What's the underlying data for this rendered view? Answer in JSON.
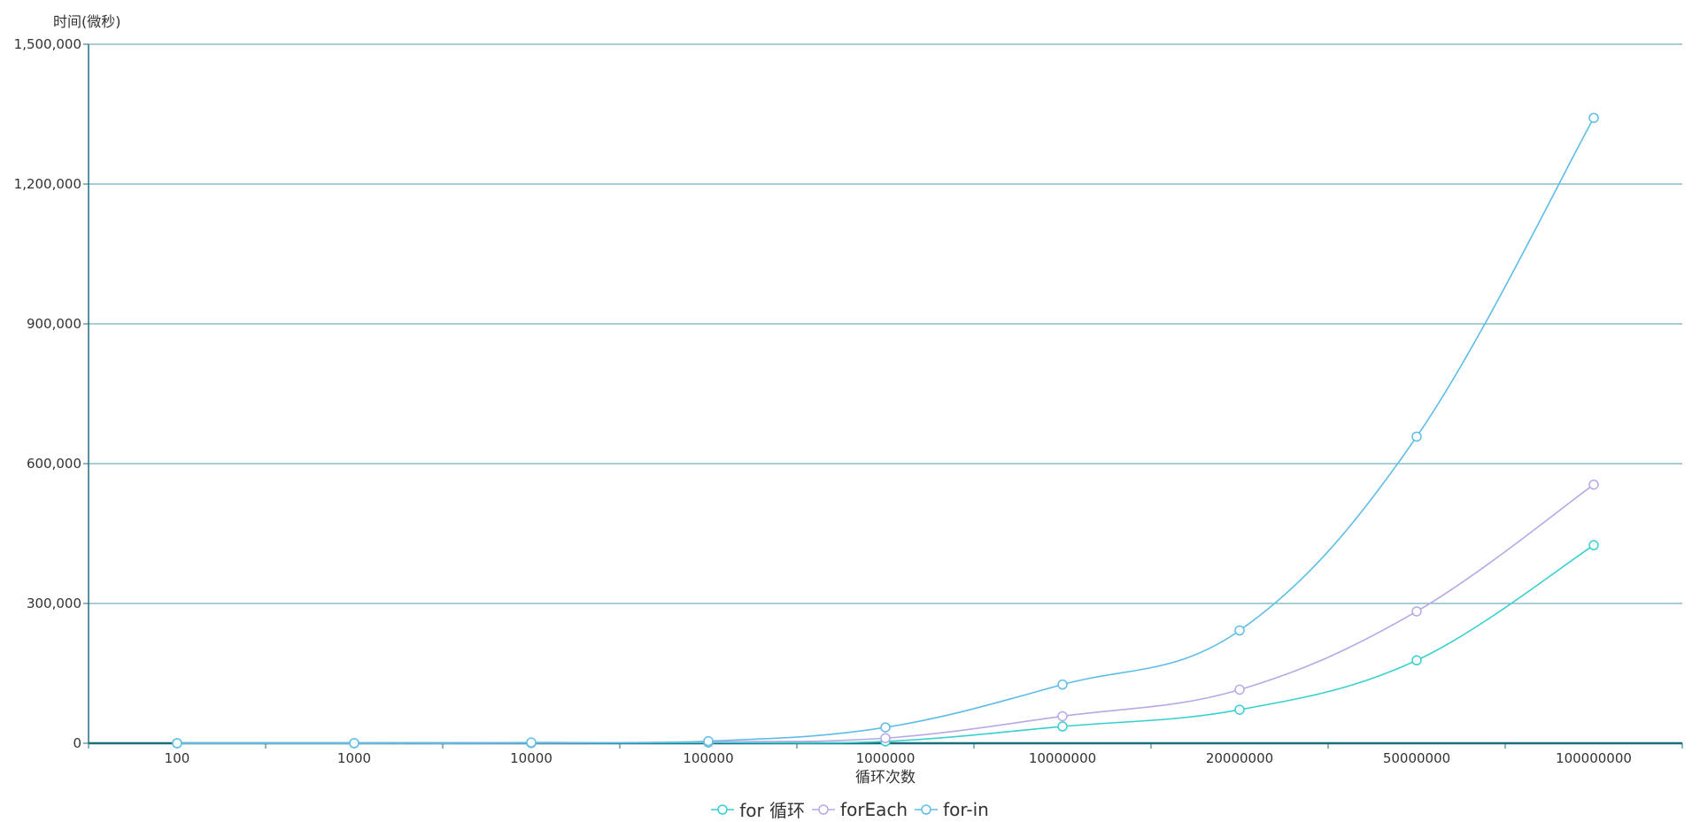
{
  "chart_data": {
    "type": "line",
    "y_axis_title": "时间(微秒)",
    "x_axis_title": "循环次数",
    "categories": [
      "100",
      "1000",
      "10000",
      "100000",
      "1000000",
      "10000000",
      "20000000",
      "50000000",
      "100000000"
    ],
    "y_ticks": [
      "0",
      "300,000",
      "600,000",
      "900,000",
      "1,200,000",
      "1,500,000"
    ],
    "ylim": [
      0,
      1500000
    ],
    "grid": true,
    "legend_position": "bottom-center",
    "series": [
      {
        "name": "for 循环",
        "color": "#37d0cf",
        "values": [
          5,
          40,
          300,
          1500,
          4000,
          36000,
          72000,
          178000,
          425000
        ]
      },
      {
        "name": "forEach",
        "color": "#b8a9e6",
        "values": [
          10,
          60,
          600,
          3000,
          11000,
          58000,
          115000,
          283000,
          555000
        ]
      },
      {
        "name": "for-in",
        "color": "#5ebde8",
        "values": [
          20,
          200,
          1600,
          4500,
          34000,
          126000,
          242000,
          658000,
          1342000
        ]
      }
    ]
  }
}
